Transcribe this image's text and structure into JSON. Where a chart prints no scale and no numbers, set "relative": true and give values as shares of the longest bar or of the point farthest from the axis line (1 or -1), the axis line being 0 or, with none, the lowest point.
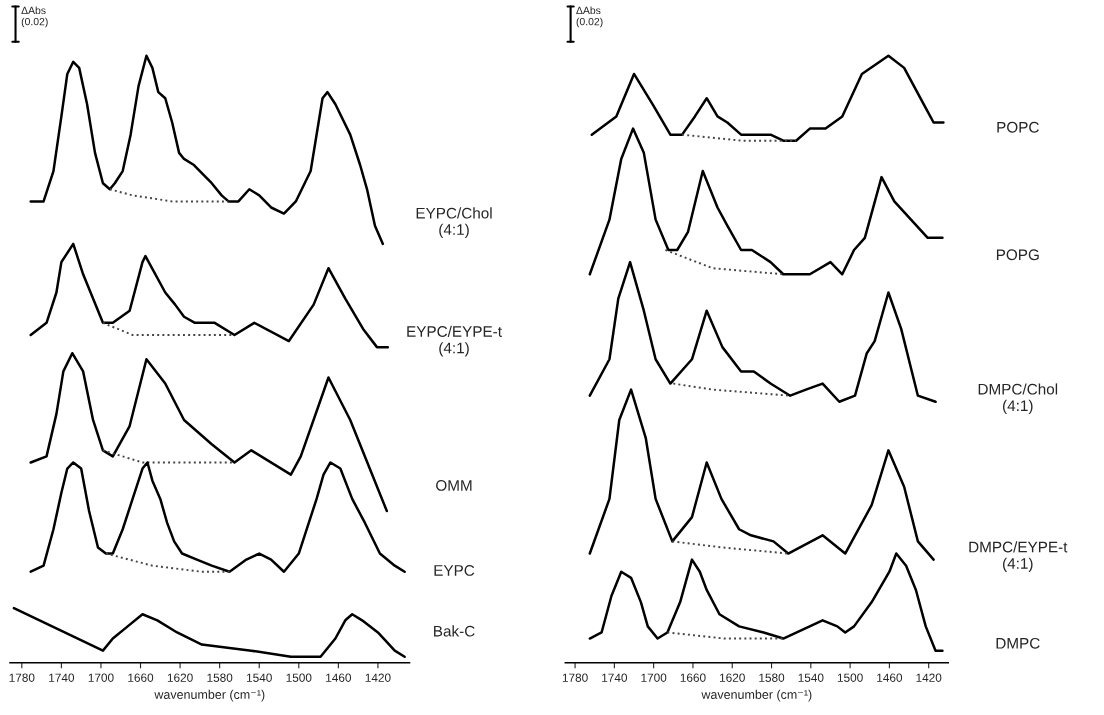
{
  "chart_data": [
    {
      "type": "line",
      "relative": true,
      "xlabel": "wavenumber (cm⁻¹)",
      "xlim": [
        1792,
        1388
      ],
      "xticks": [
        1780,
        1740,
        1700,
        1660,
        1620,
        1580,
        1540,
        1500,
        1460,
        1420
      ],
      "tick_labels": "x",
      "annotations": [
        "ΔAbs\n(0.02)"
      ],
      "series": [
        {
          "name": "EYPC/Chol\n(4:1)",
          "color": "#000000",
          "x": [
            1771,
            1758,
            1748,
            1740,
            1734,
            1728,
            1722,
            1714,
            1706,
            1698,
            1691,
            1686,
            1678,
            1670,
            1662,
            1654,
            1648,
            1642,
            1635,
            1628,
            1621,
            1616,
            1606,
            1588,
            1578,
            1571,
            1561,
            1550,
            1540,
            1528,
            1515,
            1503,
            1488,
            1480,
            1476,
            1471,
            1463,
            1448,
            1438,
            1431,
            1423,
            1415
          ],
          "values": [
            0.76,
            0.76,
            0.81,
            0.9,
            0.97,
            0.99,
            0.98,
            0.92,
            0.84,
            0.79,
            0.78,
            0.79,
            0.81,
            0.87,
            0.95,
            1.0,
            0.98,
            0.94,
            0.93,
            0.89,
            0.84,
            0.83,
            0.82,
            0.79,
            0.77,
            0.76,
            0.76,
            0.78,
            0.77,
            0.75,
            0.74,
            0.76,
            0.81,
            0.89,
            0.93,
            0.94,
            0.92,
            0.87,
            0.82,
            0.78,
            0.72,
            0.69
          ]
        },
        {
          "color": "#444444",
          "line_style": "dotted",
          "x": [
            1691,
            1668,
            1628,
            1571
          ],
          "values": [
            0.78,
            0.77,
            0.76,
            0.76
          ]
        },
        {
          "name": "EYPC/EYPE-t\n(4:1)",
          "color": "#000000",
          "x": [
            1771,
            1755,
            1745,
            1740,
            1728,
            1718,
            1708,
            1698,
            1688,
            1671,
            1658,
            1655,
            1635,
            1625,
            1616,
            1605,
            1585,
            1565,
            1545,
            1510,
            1485,
            1470,
            1453,
            1435,
            1421,
            1410
          ],
          "values": [
            0.54,
            0.56,
            0.61,
            0.66,
            0.69,
            0.64,
            0.6,
            0.56,
            0.56,
            0.58,
            0.66,
            0.67,
            0.61,
            0.59,
            0.57,
            0.56,
            0.56,
            0.54,
            0.56,
            0.53,
            0.59,
            0.65,
            0.6,
            0.55,
            0.52,
            0.52
          ]
        },
        {
          "color": "#444444",
          "line_style": "dotted",
          "x": [
            1698,
            1668,
            1618,
            1565
          ],
          "values": [
            0.56,
            0.54,
            0.54,
            0.54
          ]
        },
        {
          "name": "OMM",
          "color": "#000000",
          "x": [
            1771,
            1755,
            1745,
            1738,
            1729,
            1718,
            1708,
            1698,
            1688,
            1671,
            1654,
            1635,
            1616,
            1588,
            1565,
            1548,
            1508,
            1498,
            1470,
            1448,
            1411
          ],
          "values": [
            0.33,
            0.34,
            0.41,
            0.48,
            0.51,
            0.48,
            0.4,
            0.35,
            0.34,
            0.39,
            0.5,
            0.46,
            0.4,
            0.36,
            0.33,
            0.35,
            0.31,
            0.34,
            0.47,
            0.4,
            0.25
          ]
        },
        {
          "color": "#444444",
          "line_style": "dotted",
          "x": [
            1698,
            1658,
            1598,
            1565
          ],
          "values": [
            0.35,
            0.33,
            0.33,
            0.33
          ]
        },
        {
          "name": "EYPC",
          "color": "#000000",
          "x": [
            1771,
            1758,
            1748,
            1740,
            1734,
            1728,
            1720,
            1712,
            1703,
            1695,
            1688,
            1678,
            1668,
            1658,
            1653,
            1648,
            1640,
            1633,
            1626,
            1618,
            1603,
            1588,
            1570,
            1553,
            1540,
            1528,
            1515,
            1500,
            1490,
            1482,
            1475,
            1468,
            1458,
            1446,
            1433,
            1418,
            1403,
            1393
          ],
          "values": [
            0.15,
            0.16,
            0.22,
            0.28,
            0.32,
            0.33,
            0.32,
            0.25,
            0.19,
            0.18,
            0.18,
            0.22,
            0.27,
            0.32,
            0.33,
            0.3,
            0.27,
            0.23,
            0.2,
            0.18,
            0.17,
            0.16,
            0.15,
            0.17,
            0.18,
            0.17,
            0.15,
            0.18,
            0.23,
            0.27,
            0.31,
            0.33,
            0.32,
            0.27,
            0.23,
            0.18,
            0.16,
            0.15
          ]
        },
        {
          "color": "#444444",
          "line_style": "dotted",
          "x": [
            1695,
            1648,
            1598,
            1570
          ],
          "values": [
            0.18,
            0.16,
            0.15,
            0.15
          ]
        },
        {
          "name": "Bak-C",
          "color": "#000000",
          "x": [
            1788,
            1698,
            1688,
            1673,
            1658,
            1643,
            1623,
            1598,
            1548,
            1508,
            1493,
            1478,
            1463,
            1453,
            1446,
            1436,
            1420,
            1403,
            1393
          ],
          "values": [
            0.09,
            0.02,
            0.04,
            0.06,
            0.08,
            0.07,
            0.05,
            0.03,
            0.02,
            0.01,
            0.01,
            0.01,
            0.04,
            0.07,
            0.08,
            0.07,
            0.05,
            0.02,
            0.01
          ]
        }
      ]
    },
    {
      "type": "line",
      "relative": true,
      "xlabel": "wavenumber (cm⁻¹)",
      "xlim": [
        1790,
        1400
      ],
      "xticks": [
        1780,
        1740,
        1700,
        1660,
        1620,
        1580,
        1540,
        1500,
        1460,
        1420
      ],
      "tick_labels": "x",
      "annotations": [
        "ΔAbs\n(0.02)"
      ],
      "series": [
        {
          "name": "POPC",
          "color": "#000000",
          "x": [
            1763,
            1738,
            1720,
            1701,
            1683,
            1671,
            1658,
            1646,
            1635,
            1625,
            1611,
            1598,
            1581,
            1568,
            1555,
            1541,
            1525,
            1508,
            1488,
            1461,
            1445,
            1425,
            1415,
            1405
          ],
          "values": [
            0.87,
            0.9,
            0.97,
            0.92,
            0.87,
            0.87,
            0.9,
            0.93,
            0.9,
            0.89,
            0.87,
            0.87,
            0.87,
            0.86,
            0.86,
            0.88,
            0.88,
            0.9,
            0.97,
            1.0,
            0.98,
            0.92,
            0.89,
            0.89
          ]
        },
        {
          "color": "#444444",
          "line_style": "dotted",
          "x": [
            1671,
            1610,
            1555
          ],
          "values": [
            0.87,
            0.86,
            0.86
          ]
        },
        {
          "name": "POPG",
          "color": "#000000",
          "x": [
            1765,
            1745,
            1733,
            1721,
            1710,
            1698,
            1685,
            1676,
            1665,
            1650,
            1635,
            1625,
            1611,
            1600,
            1581,
            1568,
            1541,
            1520,
            1508,
            1496,
            1485,
            1468,
            1455,
            1438,
            1421,
            1406
          ],
          "values": [
            0.64,
            0.73,
            0.83,
            0.88,
            0.84,
            0.73,
            0.68,
            0.68,
            0.71,
            0.81,
            0.75,
            0.72,
            0.68,
            0.68,
            0.66,
            0.64,
            0.64,
            0.66,
            0.64,
            0.68,
            0.7,
            0.8,
            0.76,
            0.73,
            0.7,
            0.7
          ]
        },
        {
          "color": "#444444",
          "line_style": "dotted",
          "x": [
            1688,
            1640,
            1568
          ],
          "values": [
            0.68,
            0.65,
            0.64
          ]
        },
        {
          "name": "DMPC/Chol\n(4:1)",
          "color": "#000000",
          "x": [
            1765,
            1745,
            1736,
            1724,
            1710,
            1698,
            1683,
            1661,
            1646,
            1630,
            1611,
            1598,
            1581,
            1561,
            1545,
            1528,
            1511,
            1495,
            1483,
            1475,
            1461,
            1448,
            1431,
            1413
          ],
          "values": [
            0.44,
            0.5,
            0.6,
            0.66,
            0.58,
            0.5,
            0.46,
            0.5,
            0.58,
            0.52,
            0.48,
            0.48,
            0.46,
            0.44,
            0.45,
            0.46,
            0.43,
            0.44,
            0.51,
            0.53,
            0.61,
            0.55,
            0.44,
            0.43
          ]
        },
        {
          "color": "#444444",
          "line_style": "dotted",
          "x": [
            1680,
            1640,
            1561
          ],
          "values": [
            0.46,
            0.45,
            0.44
          ]
        },
        {
          "name": "DMPC/EYPE-t\n(4:1)",
          "color": "#000000",
          "x": [
            1765,
            1745,
            1735,
            1723,
            1708,
            1698,
            1681,
            1661,
            1646,
            1631,
            1613,
            1601,
            1578,
            1563,
            1528,
            1505,
            1478,
            1461,
            1445,
            1431,
            1415
          ],
          "values": [
            0.18,
            0.27,
            0.4,
            0.45,
            0.37,
            0.27,
            0.2,
            0.24,
            0.33,
            0.27,
            0.22,
            0.21,
            0.2,
            0.18,
            0.21,
            0.18,
            0.26,
            0.35,
            0.29,
            0.2,
            0.17
          ]
        },
        {
          "color": "#444444",
          "line_style": "dotted",
          "x": [
            1681,
            1630,
            1563
          ],
          "values": [
            0.2,
            0.19,
            0.18
          ]
        },
        {
          "name": "DMPC",
          "color": "#000000",
          "x": [
            1765,
            1753,
            1743,
            1733,
            1723,
            1713,
            1706,
            1696,
            1686,
            1673,
            1661,
            1653,
            1646,
            1633,
            1613,
            1588,
            1568,
            1528,
            1513,
            1505,
            1496,
            1478,
            1460,
            1453,
            1443,
            1433,
            1423,
            1413,
            1406
          ],
          "values": [
            0.04,
            0.05,
            0.11,
            0.15,
            0.14,
            0.1,
            0.06,
            0.04,
            0.05,
            0.1,
            0.17,
            0.15,
            0.12,
            0.08,
            0.06,
            0.05,
            0.04,
            0.07,
            0.06,
            0.05,
            0.06,
            0.1,
            0.15,
            0.18,
            0.16,
            0.12,
            0.06,
            0.02,
            0.02
          ]
        },
        {
          "color": "#444444",
          "line_style": "dotted",
          "x": [
            1686,
            1628,
            1568
          ],
          "values": [
            0.05,
            0.04,
            0.04
          ]
        }
      ]
    }
  ]
}
